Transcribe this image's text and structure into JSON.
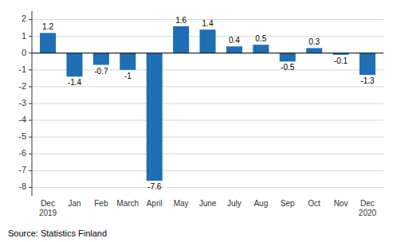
{
  "chart_data": {
    "type": "bar",
    "categories": [
      "Dec\n2019",
      "Jan",
      "Feb",
      "March",
      "April",
      "May",
      "June",
      "July",
      "Aug",
      "Sep",
      "Oct",
      "Nov",
      "Dec\n2020"
    ],
    "values": [
      1.2,
      -1.4,
      -0.7,
      -1.0,
      -7.6,
      1.6,
      1.4,
      0.4,
      0.5,
      -0.5,
      0.3,
      -0.1,
      -1.3
    ],
    "color": "#1f6fb5",
    "ylim": [
      -8.5,
      2.5
    ],
    "yticks": [
      -8,
      -7,
      -6,
      -5,
      -4,
      -3,
      -2,
      -1,
      0,
      1,
      2
    ],
    "grid": true,
    "data_labels": true,
    "annotations": [
      "Source: Statistics Finland"
    ]
  }
}
